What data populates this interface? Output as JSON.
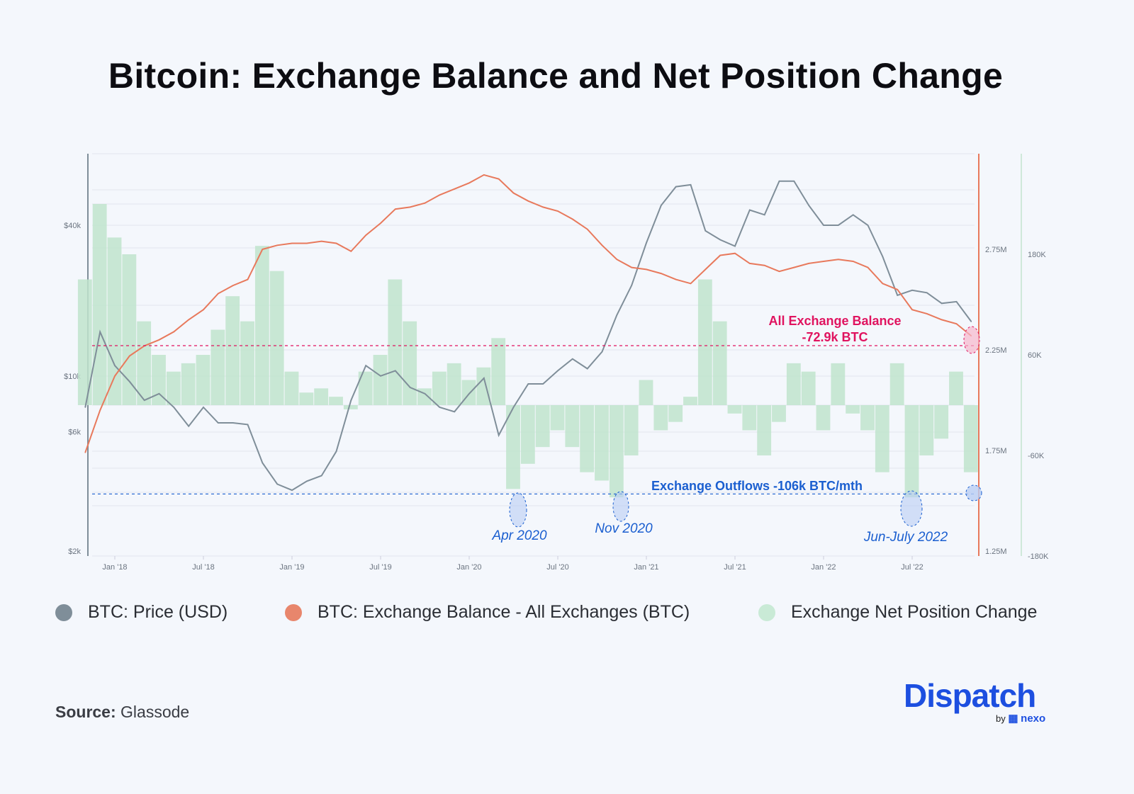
{
  "title": "Bitcoin: Exchange Balance and Net Position Change",
  "colors": {
    "price": "#7f8e99",
    "balance": "#e8795c",
    "net": "#bfe4cc",
    "pink": "#e0135f",
    "blue": "#1b5fd0",
    "brand": "#1d4fe0"
  },
  "chart_data": {
    "type": "line",
    "x_tick_labels": [
      "Jan '18",
      "Jul '18",
      "Jan '19",
      "Jul '19",
      "Jan '20",
      "Jul '20",
      "Jan '21",
      "Jul '21",
      "Jan '22",
      "Jul '22"
    ],
    "x": [
      "2017-11",
      "2017-12",
      "2018-01",
      "2018-02",
      "2018-03",
      "2018-04",
      "2018-05",
      "2018-06",
      "2018-07",
      "2018-08",
      "2018-09",
      "2018-10",
      "2018-11",
      "2018-12",
      "2019-01",
      "2019-02",
      "2019-03",
      "2019-04",
      "2019-05",
      "2019-06",
      "2019-07",
      "2019-08",
      "2019-09",
      "2019-10",
      "2019-11",
      "2019-12",
      "2020-01",
      "2020-02",
      "2020-03",
      "2020-04",
      "2020-05",
      "2020-06",
      "2020-07",
      "2020-08",
      "2020-09",
      "2020-10",
      "2020-11",
      "2020-12",
      "2021-01",
      "2021-02",
      "2021-03",
      "2021-04",
      "2021-05",
      "2021-06",
      "2021-07",
      "2021-08",
      "2021-09",
      "2021-10",
      "2021-11",
      "2021-12",
      "2022-01",
      "2022-02",
      "2022-03",
      "2022-04",
      "2022-05",
      "2022-06",
      "2022-07",
      "2022-08",
      "2022-09",
      "2022-10",
      "2022-11"
    ],
    "axes": {
      "price": {
        "scale": "log",
        "ticks": [
          "$2k",
          "$6k",
          "$10k",
          "$40k"
        ],
        "tick_values": [
          2000,
          6000,
          10000,
          40000
        ],
        "range": [
          2000,
          70000
        ]
      },
      "balance": {
        "ticks": [
          "1.25M",
          "1.75M",
          "2.25M",
          "2.75M"
        ],
        "tick_values": [
          1.25,
          1.75,
          2.25,
          2.75
        ],
        "range": [
          1.25,
          3.25
        ],
        "unit": "M BTC"
      },
      "net": {
        "ticks": [
          "-180K",
          "-60K",
          "60K",
          "180K"
        ],
        "tick_values": [
          -180,
          -60,
          60,
          180
        ],
        "range": [
          -180,
          220
        ],
        "unit": "K BTC"
      }
    },
    "series": [
      {
        "name": "BTC: Price (USD)",
        "type": "line",
        "axis": "price",
        "color": "#7f8e99",
        "values": [
          7500,
          15000,
          11000,
          9500,
          8000,
          8500,
          7500,
          6300,
          7500,
          6500,
          6500,
          6400,
          4500,
          3700,
          3500,
          3800,
          4000,
          5000,
          8000,
          11000,
          10000,
          10500,
          9000,
          8500,
          7500,
          7200,
          8500,
          9800,
          5800,
          7500,
          9300,
          9300,
          10500,
          11700,
          10700,
          12500,
          17500,
          23000,
          34000,
          48000,
          57000,
          58000,
          38000,
          35000,
          33000,
          46000,
          44000,
          60000,
          60000,
          48000,
          40000,
          40000,
          44000,
          40000,
          30000,
          21000,
          22000,
          21500,
          19500,
          19800,
          16500
        ]
      },
      {
        "name": "BTC: Exchange Balance - All Exchanges (BTC)",
        "type": "line",
        "axis": "balance",
        "color": "#e8795c",
        "values": [
          1.74,
          1.95,
          2.12,
          2.22,
          2.27,
          2.3,
          2.34,
          2.4,
          2.45,
          2.53,
          2.57,
          2.6,
          2.75,
          2.77,
          2.78,
          2.78,
          2.79,
          2.78,
          2.74,
          2.82,
          2.88,
          2.95,
          2.96,
          2.98,
          3.02,
          3.05,
          3.08,
          3.12,
          3.1,
          3.03,
          2.99,
          2.96,
          2.94,
          2.9,
          2.85,
          2.77,
          2.7,
          2.66,
          2.65,
          2.63,
          2.6,
          2.58,
          2.65,
          2.72,
          2.73,
          2.68,
          2.67,
          2.64,
          2.66,
          2.68,
          2.69,
          2.7,
          2.69,
          2.66,
          2.58,
          2.55,
          2.45,
          2.43,
          2.4,
          2.38,
          2.32
        ]
      },
      {
        "name": "Exchange Net Position Change",
        "type": "bar",
        "axis": "net",
        "color": "#bfe4cc",
        "values": [
          150,
          240,
          200,
          180,
          100,
          60,
          40,
          50,
          60,
          90,
          130,
          100,
          190,
          160,
          40,
          15,
          20,
          10,
          -5,
          40,
          60,
          150,
          100,
          20,
          40,
          50,
          30,
          45,
          80,
          -100,
          -70,
          -50,
          -30,
          -50,
          -80,
          -90,
          -110,
          -60,
          30,
          -30,
          -20,
          10,
          150,
          100,
          -10,
          -30,
          -60,
          -20,
          50,
          40,
          -30,
          50,
          -10,
          -30,
          -80,
          50,
          -110,
          -60,
          -40,
          40,
          -80
        ]
      }
    ],
    "annotations": {
      "balance_label_1": "All Exchange Balance",
      "balance_label_2": "-72.9k BTC",
      "outflow_label": "Exchange Outflows -106k BTC/mth",
      "outflow_value": -106,
      "periods": [
        {
          "label": "Apr 2020",
          "x": "2020-04"
        },
        {
          "label": "Nov 2020",
          "x": "2020-11"
        },
        {
          "label": "Jun-July 2022",
          "x": "2022-07"
        }
      ]
    },
    "legend": "bottom"
  },
  "legend": [
    "BTC: Price (USD)",
    "BTC: Exchange Balance - All Exchanges (BTC)",
    "Exchange Net Position Change"
  ],
  "source": {
    "label": "Source:",
    "value": "Glassode"
  },
  "logo": {
    "name": "Dispatch",
    "by": "by",
    "partner": "nexo"
  }
}
